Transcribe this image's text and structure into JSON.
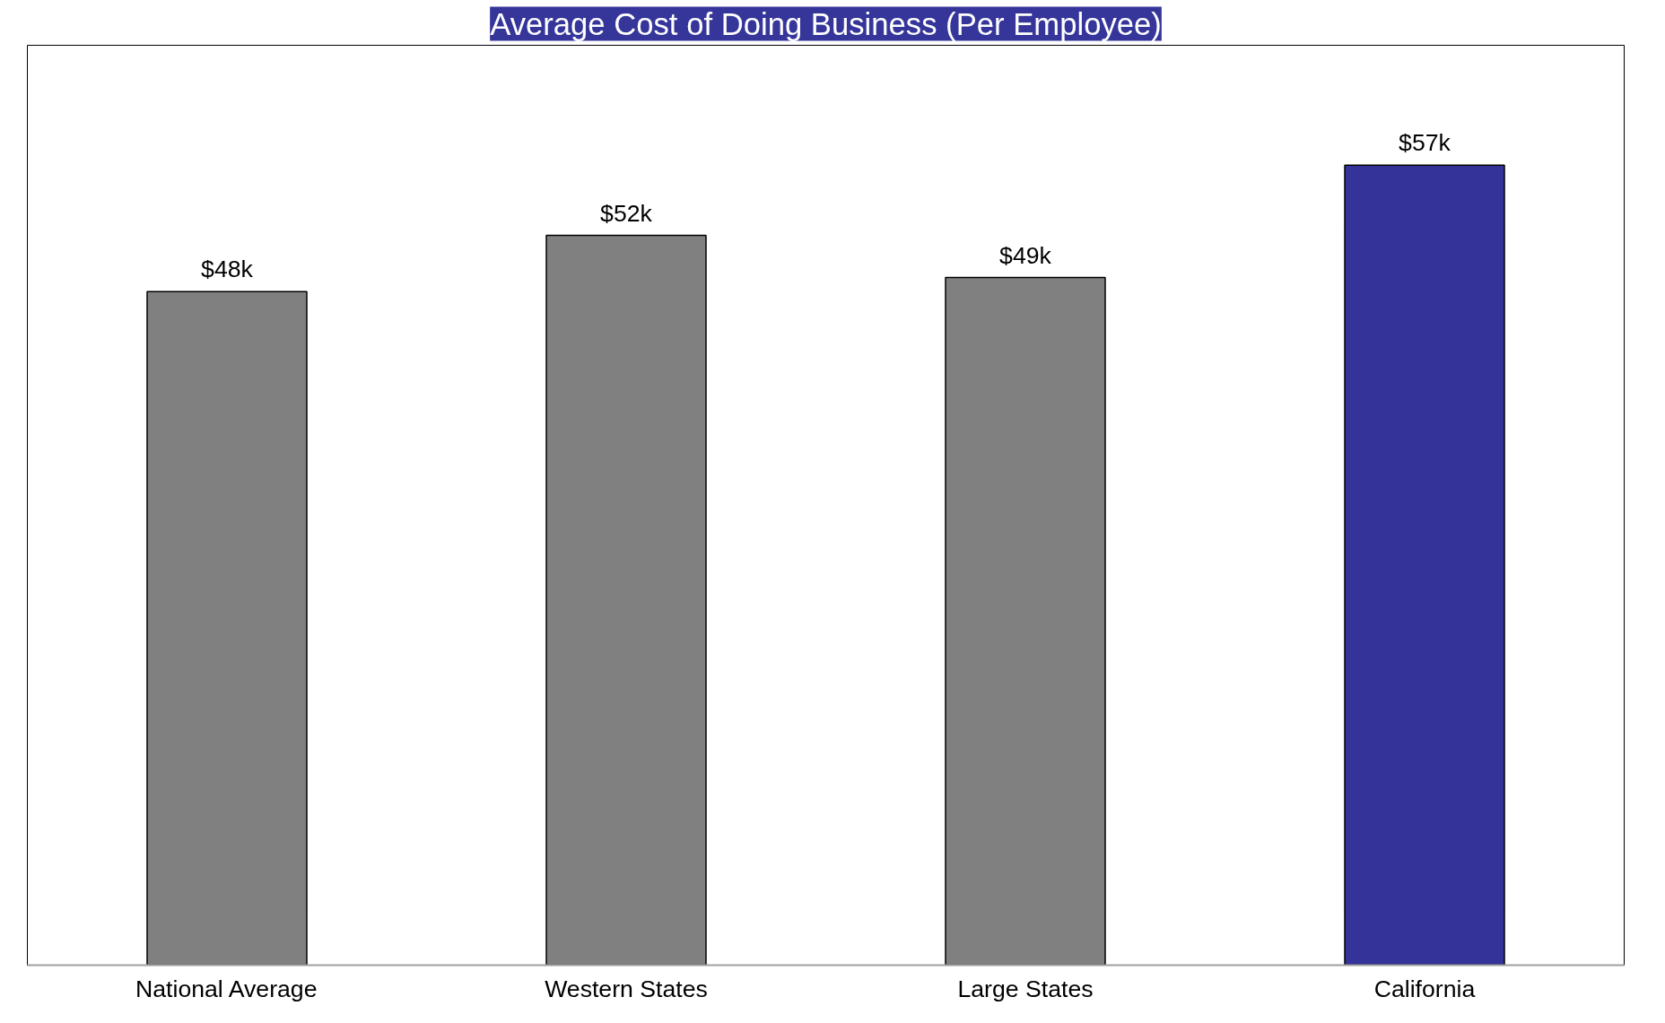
{
  "chart_data": {
    "type": "bar",
    "title": "Average Cost of Doing Business (Per Employee)",
    "categories": [
      "National Average",
      "Western States",
      "Large States",
      "California"
    ],
    "values": [
      48,
      52,
      49,
      57
    ],
    "colors": [
      "#808080",
      "#808080",
      "#808080",
      "#333399"
    ],
    "value_labels": [
      "$48k",
      "$52k",
      "$49k",
      "$57k"
    ],
    "grid": false
  }
}
